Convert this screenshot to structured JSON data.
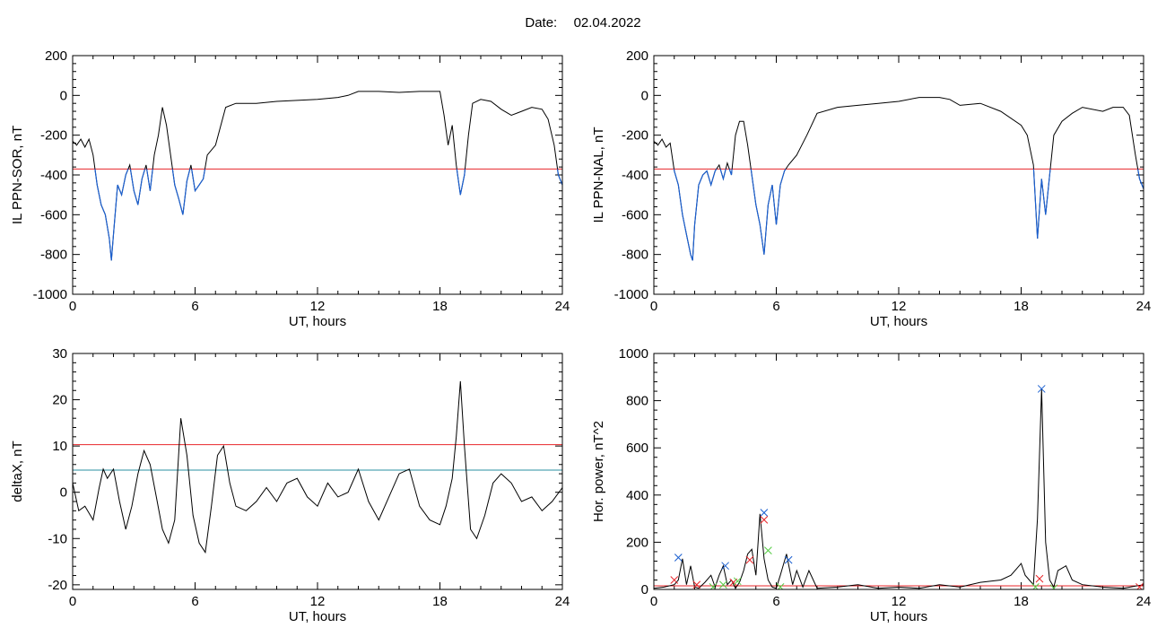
{
  "header": {
    "date_label": "Date:",
    "date_value": "02.04.2022"
  },
  "colors": {
    "black": "#000000",
    "red": "#e8262a",
    "blue": "#1a5fd0",
    "teal": "#2a8fa0",
    "green": "#55cc44"
  },
  "chart_data": [
    {
      "id": "il-ppn-sor",
      "type": "line",
      "ylabel": "IL PPN-SOR, nT",
      "xlabel": "UT, hours",
      "xlim": [
        0,
        24
      ],
      "ylim": [
        -1000,
        200
      ],
      "xticks": [
        "0",
        "6",
        "12",
        "18",
        "24"
      ],
      "xtick_values": [
        0,
        6,
        12,
        18,
        24
      ],
      "yticks": [
        "-1000",
        "-800",
        "-600",
        "-400",
        "-200",
        "0",
        "200"
      ],
      "ytick_values": [
        -1000,
        -800,
        -600,
        -400,
        -200,
        0,
        200
      ],
      "threshold": {
        "value": -370,
        "color": "#e8262a"
      },
      "below_threshold_color": "#1a5fd0",
      "series": [
        {
          "color": "#000000",
          "x": [
            0,
            0.2,
            0.4,
            0.6,
            0.8,
            1.0,
            1.2,
            1.4,
            1.6,
            1.8,
            1.9,
            2.0,
            2.2,
            2.4,
            2.6,
            2.8,
            3.0,
            3.2,
            3.4,
            3.6,
            3.8,
            4.0,
            4.2,
            4.4,
            4.6,
            4.8,
            5.0,
            5.2,
            5.4,
            5.6,
            5.8,
            6.0,
            6.2,
            6.4,
            6.6,
            7.0,
            7.5,
            8,
            9,
            10,
            11,
            12,
            13,
            13.5,
            14,
            15,
            16,
            17,
            18,
            18.2,
            18.4,
            18.6,
            18.8,
            19.0,
            19.2,
            19.4,
            19.6,
            20,
            20.5,
            21,
            21.5,
            22,
            22.5,
            23,
            23.3,
            23.6,
            23.8,
            24
          ],
          "y": [
            -230,
            -250,
            -220,
            -260,
            -220,
            -300,
            -450,
            -550,
            -600,
            -720,
            -830,
            -700,
            -450,
            -500,
            -400,
            -350,
            -480,
            -550,
            -420,
            -350,
            -480,
            -300,
            -200,
            -60,
            -150,
            -300,
            -450,
            -520,
            -600,
            -430,
            -350,
            -480,
            -450,
            -420,
            -300,
            -250,
            -60,
            -40,
            -40,
            -30,
            -25,
            -20,
            -10,
            0,
            20,
            20,
            15,
            20,
            20,
            -100,
            -250,
            -150,
            -350,
            -500,
            -400,
            -200,
            -40,
            -20,
            -30,
            -70,
            -100,
            -80,
            -60,
            -70,
            -120,
            -250,
            -400,
            -450
          ]
        }
      ]
    },
    {
      "id": "il-ppn-nal",
      "type": "line",
      "ylabel": "IL PPN-NAL, nT",
      "xlabel": "UT, hours",
      "xlim": [
        0,
        24
      ],
      "ylim": [
        -1000,
        200
      ],
      "xticks": [
        "0",
        "6",
        "12",
        "18",
        "24"
      ],
      "xtick_values": [
        0,
        6,
        12,
        18,
        24
      ],
      "yticks": [
        "-1000",
        "-800",
        "-600",
        "-400",
        "-200",
        "0",
        "200"
      ],
      "ytick_values": [
        -1000,
        -800,
        -600,
        -400,
        -200,
        0,
        200
      ],
      "threshold": {
        "value": -370,
        "color": "#e8262a"
      },
      "below_threshold_color": "#1a5fd0",
      "series": [
        {
          "color": "#000000",
          "x": [
            0,
            0.2,
            0.4,
            0.6,
            0.8,
            1.0,
            1.2,
            1.4,
            1.6,
            1.8,
            1.9,
            2.0,
            2.2,
            2.4,
            2.6,
            2.8,
            3.0,
            3.2,
            3.4,
            3.6,
            3.8,
            4.0,
            4.2,
            4.4,
            4.6,
            4.8,
            5.0,
            5.2,
            5.4,
            5.6,
            5.8,
            6.0,
            6.2,
            6.4,
            6.6,
            7.0,
            7.5,
            8,
            9,
            10,
            11,
            12,
            13,
            14,
            14.5,
            15,
            16,
            17,
            18,
            18.3,
            18.6,
            18.8,
            19.0,
            19.2,
            19.4,
            19.6,
            20,
            20.5,
            21,
            22,
            22.5,
            23,
            23.3,
            23.6,
            23.8,
            24
          ],
          "y": [
            -230,
            -250,
            -220,
            -260,
            -240,
            -380,
            -450,
            -600,
            -700,
            -800,
            -830,
            -650,
            -450,
            -400,
            -380,
            -450,
            -380,
            -350,
            -420,
            -340,
            -400,
            -200,
            -130,
            -130,
            -250,
            -400,
            -550,
            -650,
            -800,
            -550,
            -450,
            -650,
            -450,
            -380,
            -350,
            -300,
            -200,
            -90,
            -60,
            -50,
            -40,
            -30,
            -10,
            -10,
            -20,
            -50,
            -40,
            -80,
            -150,
            -200,
            -350,
            -720,
            -420,
            -600,
            -400,
            -200,
            -130,
            -90,
            -60,
            -80,
            -60,
            -60,
            -100,
            -300,
            -420,
            -470
          ]
        }
      ]
    },
    {
      "id": "delta-x",
      "type": "line",
      "ylabel": "deltaX, nT",
      "xlabel": "UT, hours",
      "xlim": [
        0,
        24
      ],
      "ylim": [
        -21,
        30
      ],
      "xticks": [
        "0",
        "6",
        "12",
        "18",
        "24"
      ],
      "xtick_values": [
        0,
        6,
        12,
        18,
        24
      ],
      "yticks": [
        "-20",
        "-10",
        "0",
        "10",
        "20",
        "30"
      ],
      "ytick_values": [
        -20,
        -10,
        0,
        10,
        20,
        30
      ],
      "thresholds": [
        {
          "value": 10.3,
          "color": "#e8262a"
        },
        {
          "value": 4.8,
          "color": "#2a8fa0"
        }
      ],
      "series": [
        {
          "color": "#000000",
          "x": [
            0,
            0.3,
            0.6,
            1.0,
            1.3,
            1.5,
            1.7,
            2.0,
            2.3,
            2.6,
            2.9,
            3.2,
            3.5,
            3.8,
            4.1,
            4.4,
            4.7,
            5.0,
            5.3,
            5.6,
            5.9,
            6.2,
            6.5,
            6.8,
            7.1,
            7.4,
            7.7,
            8.0,
            8.5,
            9.0,
            9.5,
            10,
            10.5,
            11,
            11.5,
            12,
            12.5,
            13,
            13.5,
            14,
            14.5,
            15,
            15.5,
            16,
            16.5,
            17,
            17.5,
            18,
            18.3,
            18.6,
            18.8,
            19.0,
            19.2,
            19.5,
            19.8,
            20.2,
            20.6,
            21,
            21.5,
            22,
            22.5,
            23,
            23.5,
            24
          ],
          "y": [
            2,
            -4,
            -3,
            -6,
            1,
            5,
            3,
            5,
            -2,
            -8,
            -3,
            4,
            9,
            6,
            -1,
            -8,
            -11,
            -6,
            16,
            8,
            -5,
            -11,
            -13,
            -3,
            8,
            10,
            2,
            -3,
            -4,
            -2,
            1,
            -2,
            2,
            3,
            -1,
            -3,
            2,
            -1,
            0,
            5,
            -2,
            -6,
            -1,
            4,
            5,
            -3,
            -6,
            -7,
            -3,
            3,
            12,
            24,
            10,
            -8,
            -10,
            -5,
            2,
            4,
            2,
            -2,
            -1,
            -4,
            -2,
            1
          ]
        }
      ]
    },
    {
      "id": "hor-power",
      "type": "line",
      "ylabel": "Hor. power, nT^2",
      "xlabel": "UT, hours",
      "xlim": [
        0,
        24
      ],
      "ylim": [
        0,
        1000
      ],
      "xticks": [
        "0",
        "6",
        "12",
        "18",
        "24"
      ],
      "xtick_values": [
        0,
        6,
        12,
        18,
        24
      ],
      "yticks": [
        "0",
        "200",
        "400",
        "600",
        "800",
        "1000"
      ],
      "ytick_values": [
        0,
        200,
        400,
        600,
        800,
        1000
      ],
      "threshold": {
        "value": 15,
        "color": "#e8262a"
      },
      "series": [
        {
          "color": "#000000",
          "x": [
            0,
            0.5,
            1.0,
            1.2,
            1.4,
            1.6,
            1.8,
            2.0,
            2.2,
            2.5,
            2.8,
            3.0,
            3.2,
            3.4,
            3.6,
            3.8,
            4.0,
            4.2,
            4.4,
            4.6,
            4.8,
            5.0,
            5.2,
            5.4,
            5.6,
            5.8,
            6.0,
            6.2,
            6.5,
            6.8,
            7.0,
            7.3,
            7.6,
            8.0,
            9,
            10,
            11,
            12,
            13,
            14,
            15,
            16,
            17,
            17.5,
            17.8,
            18.0,
            18.2,
            18.4,
            18.6,
            18.8,
            19.0,
            19.2,
            19.4,
            19.6,
            19.8,
            20.2,
            20.5,
            21,
            22,
            23,
            24
          ],
          "y": [
            5,
            10,
            20,
            40,
            130,
            20,
            100,
            10,
            5,
            30,
            60,
            10,
            60,
            100,
            20,
            40,
            5,
            30,
            80,
            150,
            170,
            60,
            320,
            130,
            40,
            10,
            5,
            60,
            150,
            20,
            80,
            10,
            80,
            5,
            10,
            20,
            5,
            10,
            5,
            20,
            10,
            30,
            40,
            60,
            90,
            110,
            60,
            40,
            20,
            300,
            850,
            200,
            40,
            10,
            80,
            100,
            40,
            20,
            10,
            5,
            20
          ]
        }
      ],
      "markers": [
        {
          "color": "#1a5fd0",
          "points": [
            [
              1.2,
              135
            ],
            [
              3.5,
              100
            ],
            [
              5.4,
              325
            ],
            [
              6.6,
              125
            ],
            [
              19.0,
              850
            ]
          ]
        },
        {
          "color": "#e8262a",
          "points": [
            [
              1.0,
              40
            ],
            [
              2.1,
              20
            ],
            [
              3.9,
              30
            ],
            [
              4.7,
              125
            ],
            [
              5.4,
              295
            ],
            [
              18.9,
              45
            ],
            [
              23.8,
              10
            ]
          ]
        },
        {
          "color": "#55cc44",
          "points": [
            [
              2.9,
              10
            ],
            [
              3.4,
              20
            ],
            [
              4.1,
              35
            ],
            [
              5.6,
              165
            ],
            [
              6.2,
              10
            ],
            [
              18.7,
              10
            ],
            [
              19.6,
              5
            ]
          ]
        }
      ]
    }
  ]
}
